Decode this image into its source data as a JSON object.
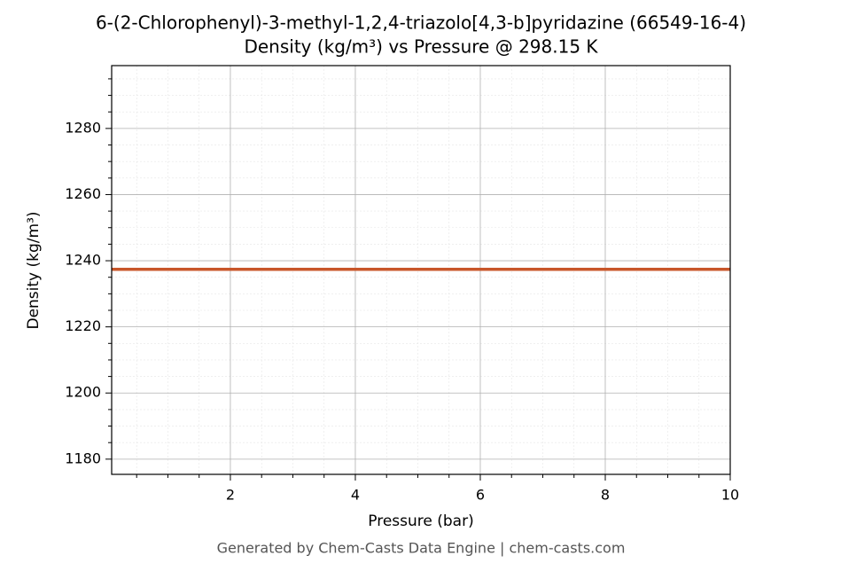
{
  "chart_data": {
    "type": "line",
    "title": "6-(2-Chlorophenyl)-3-methyl-1,2,4-triazolo[4,3-b]pyridazine (66549-16-4)",
    "subtitle": "Density (kg/m³) vs Pressure @ 298.15 K",
    "x_label": "Pressure (bar)",
    "y_label": "Density (kg/m³)",
    "footer": "Generated by Chem-Casts Data Engine | chem-casts.com",
    "x": [
      0.1,
      10
    ],
    "series": [
      {
        "name": "Density",
        "color": "#c8562a",
        "values": [
          1237.4,
          1237.4
        ]
      }
    ],
    "xlim": [
      0.1,
      10
    ],
    "ylim": [
      1175.4,
      1299
    ],
    "xticks": [
      2,
      4,
      6,
      8,
      10
    ],
    "yticks": [
      1180,
      1200,
      1220,
      1240,
      1260,
      1280
    ],
    "x_minor_ticks": [
      0.5,
      1,
      1.5,
      2.5,
      3,
      3.5,
      4.5,
      5,
      5.5,
      6.5,
      7,
      7.5,
      8.5,
      9,
      9.5
    ],
    "y_minor_ticks": [
      1185,
      1190,
      1195,
      1205,
      1210,
      1215,
      1225,
      1230,
      1235,
      1245,
      1250,
      1255,
      1265,
      1270,
      1275,
      1285,
      1290,
      1295
    ],
    "grid": true,
    "legend": false
  }
}
